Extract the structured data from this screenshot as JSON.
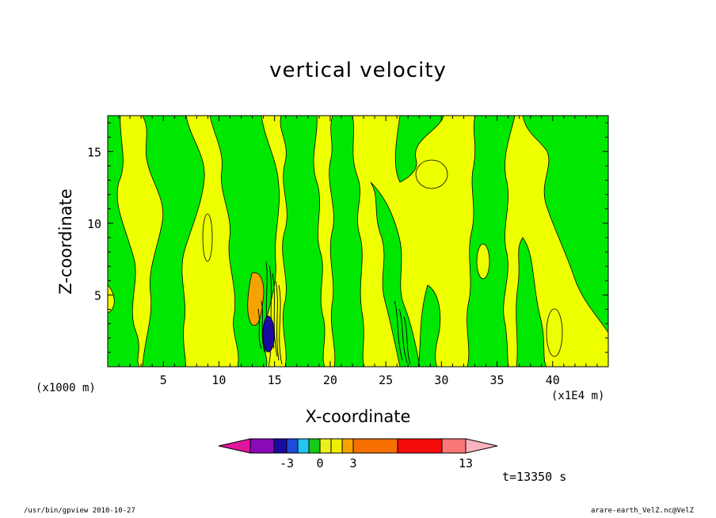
{
  "chart_data": {
    "type": "heatmap",
    "title": "vertical velocity",
    "xlabel": "X-coordinate",
    "ylabel": "Z-coordinate",
    "x_unit_left": "(x1000 m)",
    "x_unit_right": "(x1E4 m)",
    "xlim": [
      0,
      45
    ],
    "ylim": [
      0,
      17.5
    ],
    "x_ticks": [
      5,
      10,
      15,
      20,
      25,
      30,
      35,
      40
    ],
    "y_ticks": [
      5,
      10,
      15
    ],
    "time_label": "t=13350 s",
    "colorbar": {
      "tick_labels": [
        "-3",
        "0",
        "3",
        "13"
      ],
      "colors": [
        "#e0169f",
        "#8a0ab8",
        "#1a0aa0",
        "#1e4bd8",
        "#21c7f2",
        "#17c817",
        "#eaf01a",
        "#efef02",
        "#f5a300",
        "#f57000",
        "#f50a0a",
        "#fb7676",
        "#fbb4bf"
      ]
    },
    "field_colors": {
      "positive": "#eeff00",
      "negative": "#00e800",
      "strong_positive": "#f5a300",
      "strong_negative": "#1a0aa0",
      "contour": "#000000"
    }
  },
  "footer": {
    "left": "/usr/bin/gpview  2010-10-27",
    "right": "arare-earth_VelZ.nc@VelZ"
  }
}
